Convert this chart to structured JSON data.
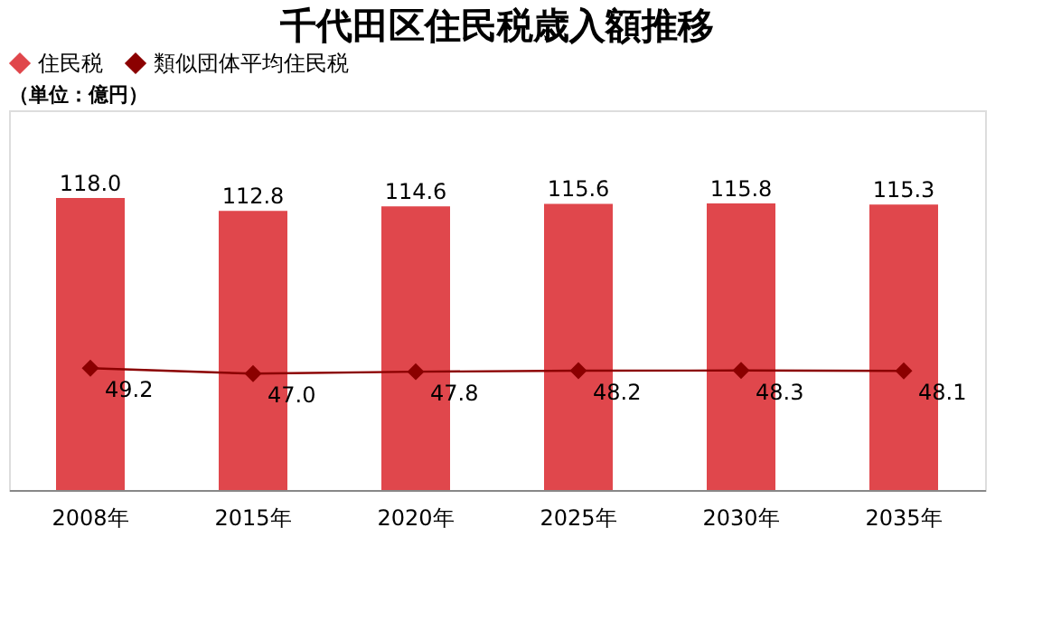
{
  "chart_data": {
    "type": "bar",
    "title": "千代田区住民税歳入額推移",
    "categories": [
      "2008年",
      "2015年",
      "2020年",
      "2025年",
      "2030年",
      "2035年"
    ],
    "series": [
      {
        "name": "住民税",
        "color": "#e0474c",
        "values": [
          118.0,
          112.8,
          114.6,
          115.6,
          115.8,
          115.3
        ],
        "value_labels": [
          "118.0",
          "112.8",
          "114.6",
          "115.6",
          "115.8",
          "115.3"
        ]
      },
      {
        "name": "類似団体平均住民税",
        "type": "line",
        "color": "#8b0000",
        "values": [
          49.2,
          47.0,
          47.8,
          48.2,
          48.3,
          48.1
        ],
        "value_labels": [
          "49.2",
          "47.0",
          "47.8",
          "48.2",
          "48.3",
          "48.1"
        ]
      }
    ],
    "legend": "top",
    "marker": "diamond",
    "grid": false,
    "tick_labels": "x",
    "annotations": [
      "（単位：億円）"
    ]
  }
}
